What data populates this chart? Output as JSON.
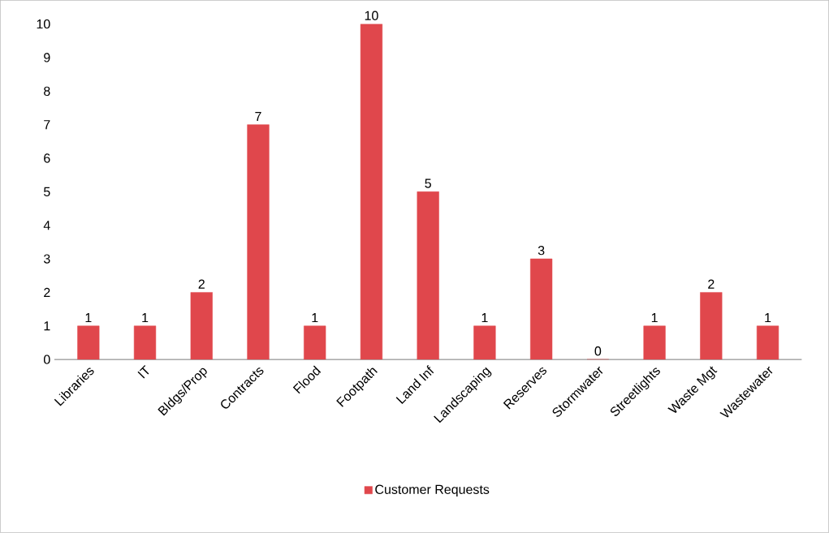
{
  "chart_data": {
    "type": "bar",
    "categories": [
      "Libraries",
      "IT",
      "Bldgs/Prop",
      "Contracts",
      "Flood",
      "Footpath",
      "Land Inf",
      "Landscaping",
      "Reserves",
      "Stormwater",
      "Streetlights",
      "Waste Mgt",
      "Wastewater"
    ],
    "series": [
      {
        "name": "Customer Requests",
        "color": "#e0474c",
        "values": [
          1,
          1,
          2,
          7,
          1,
          10,
          5,
          1,
          3,
          0,
          1,
          2,
          1
        ]
      }
    ],
    "ylim": [
      0,
      10
    ],
    "yticks": [
      0,
      1,
      2,
      3,
      4,
      5,
      6,
      7,
      8,
      9,
      10
    ],
    "data_labels": true,
    "legend": "bottom",
    "grid": false
  }
}
